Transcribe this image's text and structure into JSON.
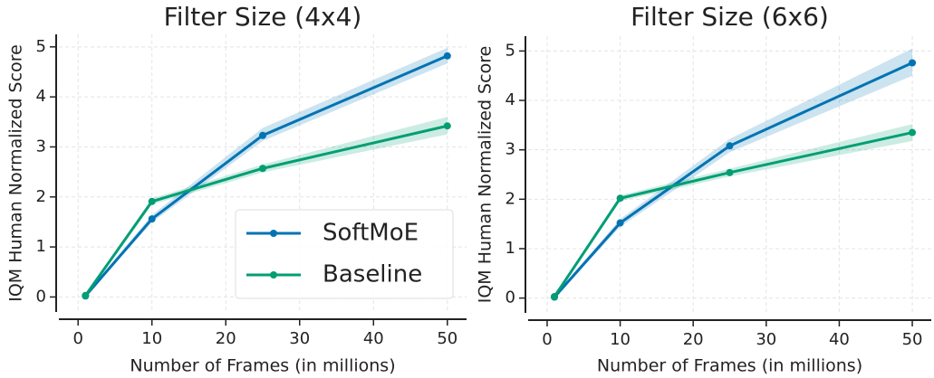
{
  "chart_data": [
    {
      "type": "line",
      "title": "Filter Size (4x4)",
      "x_label": "Number of Frames (in millions)",
      "y_label": "IQM Human Normalized Score",
      "x": [
        1,
        10,
        25,
        50
      ],
      "series": [
        {
          "name": "SoftMoE",
          "color": "#0173b2",
          "values": [
            0.02,
            1.56,
            3.23,
            4.82
          ],
          "lower": [
            0.0,
            1.49,
            3.12,
            4.67
          ],
          "upper": [
            0.05,
            1.64,
            3.38,
            4.98
          ]
        },
        {
          "name": "Baseline",
          "color": "#029e73",
          "values": [
            0.03,
            1.91,
            2.57,
            3.42
          ],
          "lower": [
            0.0,
            1.85,
            2.49,
            3.25
          ],
          "upper": [
            0.06,
            1.97,
            2.65,
            3.6
          ]
        }
      ],
      "xlim": [
        -2.6,
        52.6
      ],
      "ylim": [
        -0.3,
        5.25
      ],
      "xticks": [
        0,
        10,
        20,
        30,
        40,
        50
      ],
      "yticks": [
        0,
        1,
        2,
        3,
        4,
        5
      ],
      "grid": true,
      "legend": "lower right"
    },
    {
      "type": "line",
      "title": "Filter Size (6x6)",
      "x_label": "Number of Frames (in millions)",
      "y_label": "IQM Human Normalized Score",
      "x": [
        1,
        10,
        25,
        50
      ],
      "series": [
        {
          "name": "SoftMoE",
          "color": "#0173b2",
          "values": [
            0.02,
            1.52,
            3.08,
            4.76
          ],
          "lower": [
            0.0,
            1.44,
            2.95,
            4.5
          ],
          "upper": [
            0.05,
            1.6,
            3.22,
            5.05
          ]
        },
        {
          "name": "Baseline",
          "color": "#029e73",
          "values": [
            0.03,
            2.02,
            2.54,
            3.35
          ],
          "lower": [
            0.0,
            1.96,
            2.46,
            3.18
          ],
          "upper": [
            0.06,
            2.08,
            2.62,
            3.52
          ]
        }
      ],
      "xlim": [
        -2.6,
        52.6
      ],
      "ylim": [
        -0.3,
        5.3
      ],
      "xticks": [
        0,
        10,
        20,
        30,
        40,
        50
      ],
      "yticks": [
        0,
        1,
        2,
        3,
        4,
        5
      ],
      "grid": true,
      "legend": false
    }
  ]
}
